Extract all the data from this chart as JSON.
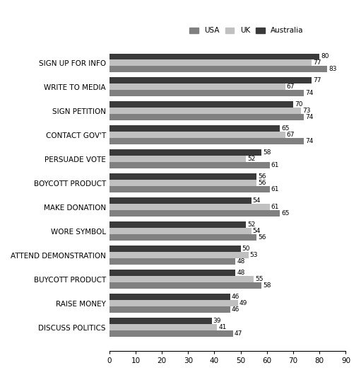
{
  "categories": [
    "SIGN UP FOR INFO",
    "WRITE TO MEDIA",
    "SIGN PETITION",
    "CONTACT GOV'T",
    "PERSUADE VOTE",
    "BOYCOTT PRODUCT",
    "MAKE DONATION",
    "WORE SYMBOL",
    "ATTEND DEMONSTRATION",
    "BUYCOTT PRODUCT",
    "RAISE MONEY",
    "DISCUSS POLITICS"
  ],
  "series": {
    "USA": [
      83,
      74,
      74,
      74,
      61,
      61,
      65,
      56,
      48,
      58,
      46,
      47
    ],
    "UK": [
      77,
      67,
      73,
      67,
      52,
      56,
      61,
      54,
      53,
      55,
      49,
      41
    ],
    "Australia": [
      80,
      77,
      70,
      65,
      58,
      56,
      54,
      52,
      50,
      48,
      46,
      39
    ]
  },
  "colors": {
    "USA": "#808080",
    "UK": "#c0c0c0",
    "Australia": "#3a3a3a"
  },
  "xlim": [
    0,
    90
  ],
  "xticks": [
    0,
    10,
    20,
    30,
    40,
    50,
    60,
    70,
    80,
    90
  ],
  "bar_height": 0.26,
  "label_fontsize": 7.5,
  "category_fontsize": 7.5,
  "value_fontsize": 6.5,
  "figsize": [
    5.11,
    5.3
  ],
  "dpi": 100,
  "background_color": "#ffffff"
}
